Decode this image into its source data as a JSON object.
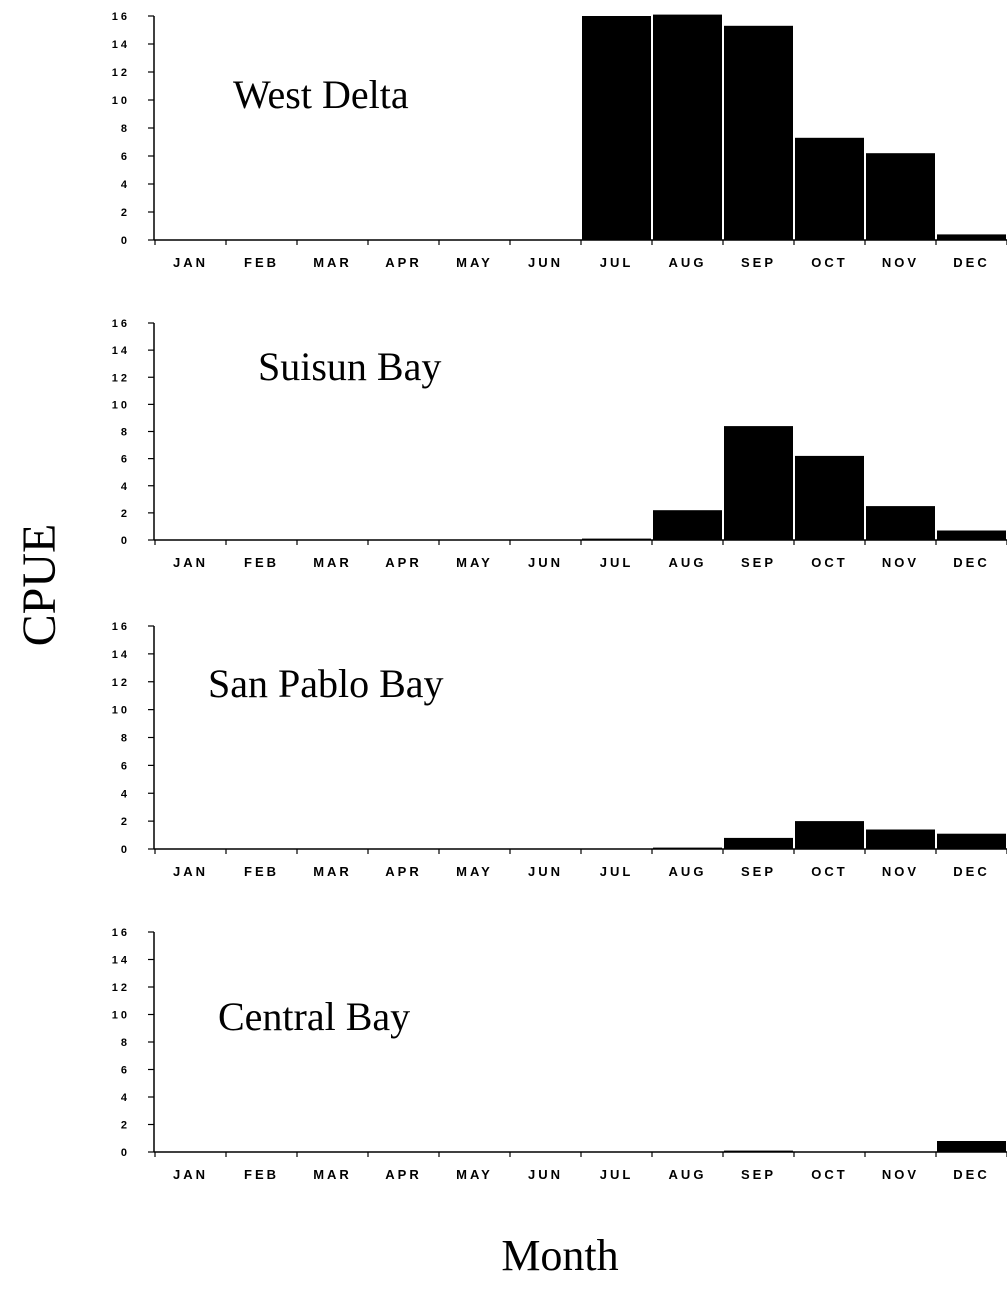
{
  "chart_data": [
    {
      "type": "bar",
      "title": "West Delta",
      "categories": [
        "JAN",
        "FEB",
        "MAR",
        "APR",
        "MAY",
        "JUN",
        "JUL",
        "AUG",
        "SEP",
        "OCT",
        "NOV",
        "DEC"
      ],
      "values": [
        0,
        0,
        0,
        0,
        0,
        0,
        16,
        16.1,
        15.3,
        7.3,
        6.2,
        0.4
      ],
      "yticks": [
        "0",
        "2",
        "4",
        "6",
        "8",
        "10",
        "12",
        "14",
        "16"
      ],
      "ylim": [
        0,
        16
      ],
      "grid": false
    },
    {
      "type": "bar",
      "title": "Suisun Bay",
      "categories": [
        "JAN",
        "FEB",
        "MAR",
        "APR",
        "MAY",
        "JUN",
        "JUL",
        "AUG",
        "SEP",
        "OCT",
        "NOV",
        "DEC"
      ],
      "values": [
        0,
        0,
        0,
        0,
        0,
        0,
        0.1,
        2.2,
        8.4,
        6.2,
        2.5,
        0.7
      ],
      "yticks": [
        "0",
        "2",
        "4",
        "6",
        "8",
        "10",
        "12",
        "14",
        "16"
      ],
      "ylim": [
        0,
        16
      ],
      "grid": false
    },
    {
      "type": "bar",
      "title": "San Pablo Bay",
      "categories": [
        "JAN",
        "FEB",
        "MAR",
        "APR",
        "MAY",
        "JUN",
        "JUL",
        "AUG",
        "SEP",
        "OCT",
        "NOV",
        "DEC"
      ],
      "values": [
        0,
        0,
        0,
        0,
        0,
        0,
        0,
        0.1,
        0.8,
        2.0,
        1.4,
        1.1
      ],
      "yticks": [
        "0",
        "2",
        "4",
        "6",
        "8",
        "10",
        "12",
        "14",
        "16"
      ],
      "ylim": [
        0,
        16
      ],
      "grid": false
    },
    {
      "type": "bar",
      "title": "Central Bay",
      "categories": [
        "JAN",
        "FEB",
        "MAR",
        "APR",
        "MAY",
        "JUN",
        "JUL",
        "AUG",
        "SEP",
        "OCT",
        "NOV",
        "DEC"
      ],
      "values": [
        0,
        0,
        0,
        0,
        0,
        0,
        0,
        0,
        0.1,
        0,
        0,
        0.8
      ],
      "yticks": [
        "0",
        "2",
        "4",
        "6",
        "8",
        "10",
        "12",
        "14",
        "16"
      ],
      "ylim": [
        0,
        16
      ],
      "grid": false
    }
  ],
  "ylabel": "CPUE",
  "xlabel": "Month",
  "colors": {
    "bar": "#000000",
    "axis": "#000000"
  }
}
